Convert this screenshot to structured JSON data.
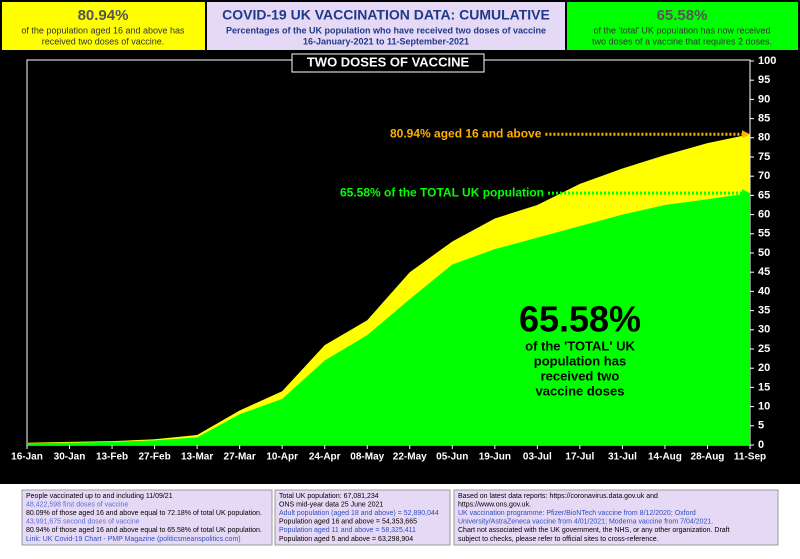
{
  "chart_data": {
    "type": "area",
    "title": "COVID-19 UK VACCINATION DATA: CUMULATIVE",
    "subtitle": "Percentages of the UK population who have received two doses of vaccine",
    "date_range": "16-January-2021 to 11-September-2021",
    "panel_title": "TWO DOSES OF VACCINE",
    "categories": [
      "16-Jan",
      "30-Jan",
      "13-Feb",
      "27-Feb",
      "13-Mar",
      "27-Mar",
      "10-Apr",
      "24-Apr",
      "08-May",
      "22-May",
      "05-Jun",
      "19-Jun",
      "03-Jul",
      "17-Jul",
      "31-Jul",
      "14-Aug",
      "28-Aug",
      "11-Sep"
    ],
    "series": [
      {
        "name": "aged 16 and above",
        "color": "#ffff00",
        "values": [
          0.6,
          0.8,
          1.0,
          1.5,
          2.6,
          9,
          14,
          26,
          32.5,
          45,
          53,
          59,
          62.5,
          68,
          72,
          75.5,
          78.6,
          80.94
        ]
      },
      {
        "name": "TOTAL UK population",
        "color": "#00ff00",
        "values": [
          0.5,
          0.6,
          0.8,
          1.2,
          2.0,
          8,
          12,
          22,
          28.6,
          38,
          47,
          51,
          54,
          57,
          60,
          62.5,
          64,
          65.58
        ]
      }
    ],
    "ylim": [
      0,
      100
    ],
    "yticks": [
      0,
      5,
      10,
      15,
      20,
      25,
      30,
      35,
      40,
      45,
      50,
      55,
      60,
      65,
      70,
      75,
      80,
      85,
      90,
      95,
      100
    ],
    "annotations": [
      "80.94% aged 16 and above",
      "65.58% of the TOTAL UK population"
    ],
    "big_number": "65.58%",
    "big_text": [
      "of the 'TOTAL' UK",
      "population has",
      "received two",
      "vaccine doses"
    ]
  },
  "header": {
    "left": {
      "value": "80.94%",
      "lines": [
        "of the population aged 16 and above has",
        "received two doses of vaccine."
      ]
    },
    "right": {
      "value": "65.58%",
      "lines": [
        "of the 'total' UK population has now received",
        "two doses of  a vaccine that requires 2 doses."
      ]
    }
  },
  "footer": [
    {
      "lines": [
        {
          "text": "People vaccinated up to and including 11/09/21",
          "color": "#000000"
        },
        {
          "text": "48,422,598 first doses of vaccine",
          "color": "#5a6fd0"
        },
        {
          "text": "80.09% of those aged 16 and above equal to 72.18% of total UK population.",
          "color": "#000000"
        },
        {
          "text": "43,991,675 second doses of vaccine",
          "color": "#5a6fd0"
        },
        {
          "text": "80.94% of those aged 16 and above equal to 65.58% of total UK population.",
          "color": "#000000"
        },
        {
          "text": "Link: UK Covid-19 Chart - PMP Magazine (politicsmeanspolitics.com)",
          "color": "#2f4fbf"
        }
      ]
    },
    {
      "lines": [
        {
          "text": "Total UK population: 67,081,234",
          "color": "#000000"
        },
        {
          "text": "ONS mid-year data 25 June 2021",
          "color": "#000000"
        },
        {
          "text": "Adult population (aged 18 and above) = 52,890,044",
          "color": "#2f4fbf"
        },
        {
          "text": "Population aged 16 and above = 54,353,665",
          "color": "#000000"
        },
        {
          "text": "Population aged 11 and above = 58,325,411",
          "color": "#2f4fbf"
        },
        {
          "text": "Population aged  5 and above = 63,298,904",
          "color": "#000000"
        }
      ]
    },
    {
      "lines": [
        {
          "text": "Based on latest data reports: https://coronavirus.data.gov.uk and",
          "color": "#000000"
        },
        {
          "text": "https://www.ons.gov.uk.",
          "color": "#000000"
        },
        {
          "text": "UK vaccination programme: Pfizer/BioNTech vaccine from 8/12/2020; Oxford",
          "color": "#2f4fbf"
        },
        {
          "text": "University/AstraZeneca vaccine from 4/01/2021; Moderna vaccine from 7/04/2021.",
          "color": "#2f4fbf"
        },
        {
          "text": "Chart not associated with the UK government, the NHS, or any other organization. Draft",
          "color": "#000000"
        },
        {
          "text": "subject to checks, please refer to official sites to cross-reference.",
          "color": "#000000"
        }
      ]
    }
  ]
}
